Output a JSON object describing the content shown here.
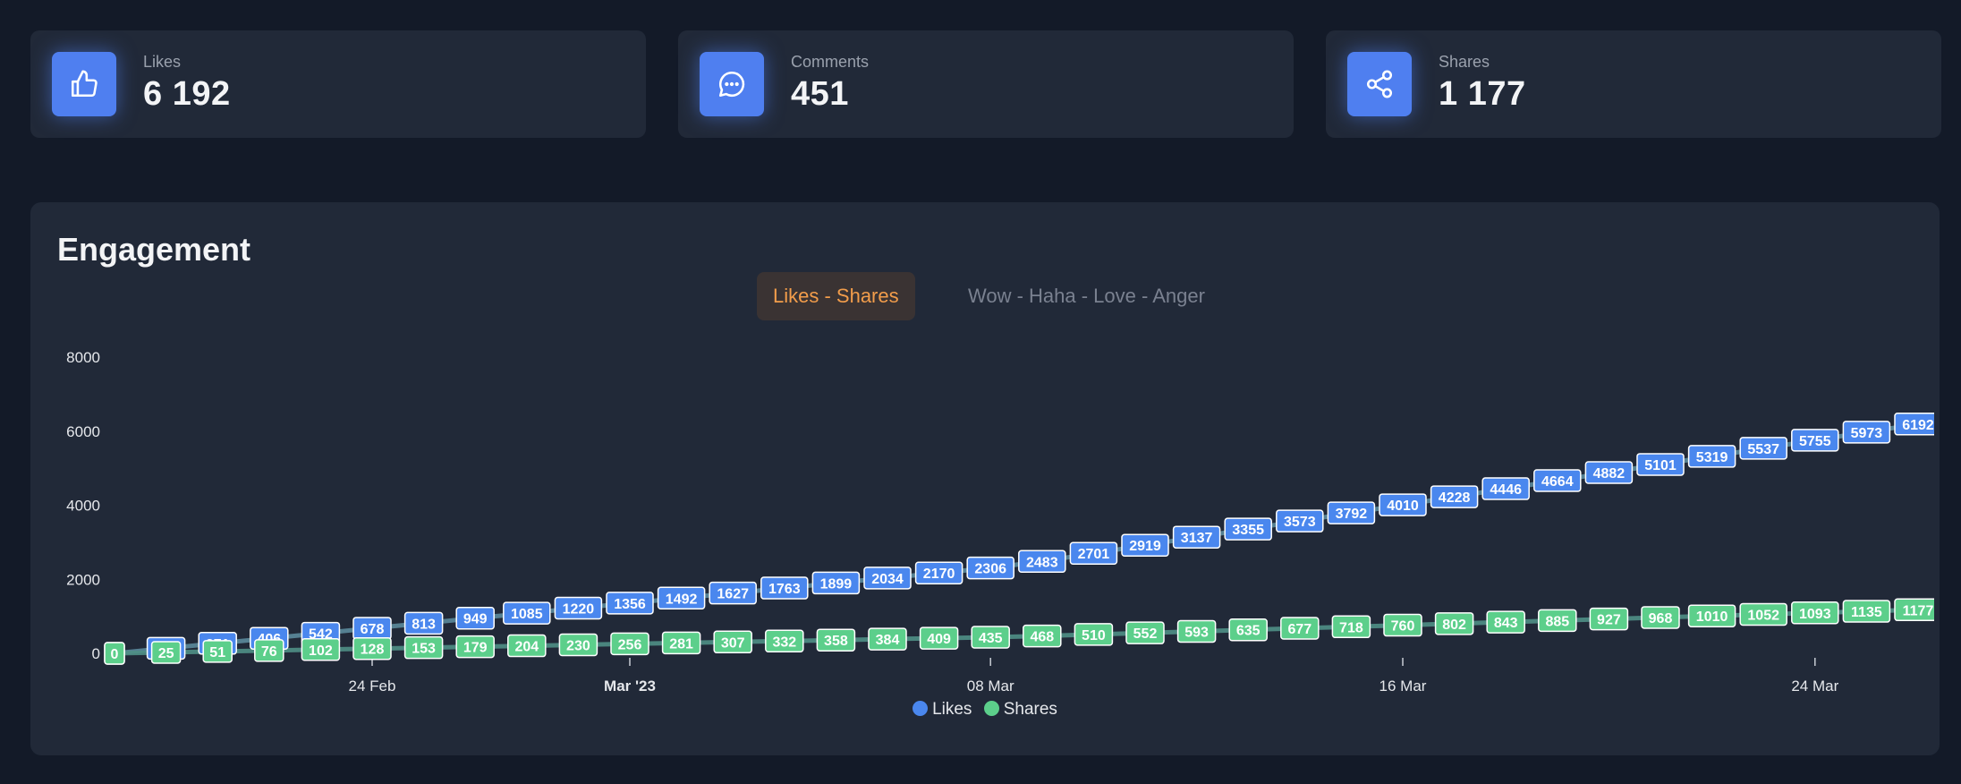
{
  "stats": [
    {
      "label": "Likes",
      "value": "6 192",
      "icon": "thumbs-up-icon"
    },
    {
      "label": "Comments",
      "value": "451",
      "icon": "message-bubble-icon"
    },
    {
      "label": "Shares",
      "value": "1 177",
      "icon": "share-icon"
    }
  ],
  "engagement": {
    "title": "Engagement",
    "tabs": [
      {
        "label": "Likes - Shares",
        "active": true
      },
      {
        "label": "Wow - Haha - Love - Anger",
        "active": false
      }
    ]
  },
  "colors": {
    "likes": "#4a87ee",
    "shares": "#5ccf8b",
    "accent": "#f29d4b"
  },
  "chart_data": {
    "type": "line",
    "ylim": [
      0,
      8000
    ],
    "y_ticks": [
      0,
      2000,
      4000,
      6000,
      8000
    ],
    "x_ticks": [
      {
        "label": "24 Feb",
        "index": 5,
        "bold": false
      },
      {
        "label": "Mar '23",
        "index": 10,
        "bold": true
      },
      {
        "label": "08 Mar",
        "index": 17,
        "bold": false
      },
      {
        "label": "16 Mar",
        "index": 25,
        "bold": false
      },
      {
        "label": "24 Mar",
        "index": 33,
        "bold": false
      }
    ],
    "series": [
      {
        "name": "Likes",
        "values": [
          0,
          136,
          271,
          406,
          542,
          678,
          813,
          949,
          1085,
          1220,
          1356,
          1492,
          1627,
          1763,
          1899,
          2034,
          2170,
          2306,
          2483,
          2701,
          2919,
          3137,
          3355,
          3573,
          3792,
          4010,
          4228,
          4446,
          4664,
          4882,
          5101,
          5319,
          5537,
          5755,
          5973,
          6192
        ]
      },
      {
        "name": "Shares",
        "values": [
          0,
          25,
          51,
          76,
          102,
          128,
          153,
          179,
          204,
          230,
          256,
          281,
          307,
          332,
          358,
          384,
          409,
          435,
          468,
          510,
          552,
          593,
          635,
          677,
          718,
          760,
          802,
          843,
          885,
          927,
          968,
          1010,
          1052,
          1093,
          1135,
          1177
        ]
      }
    ]
  }
}
